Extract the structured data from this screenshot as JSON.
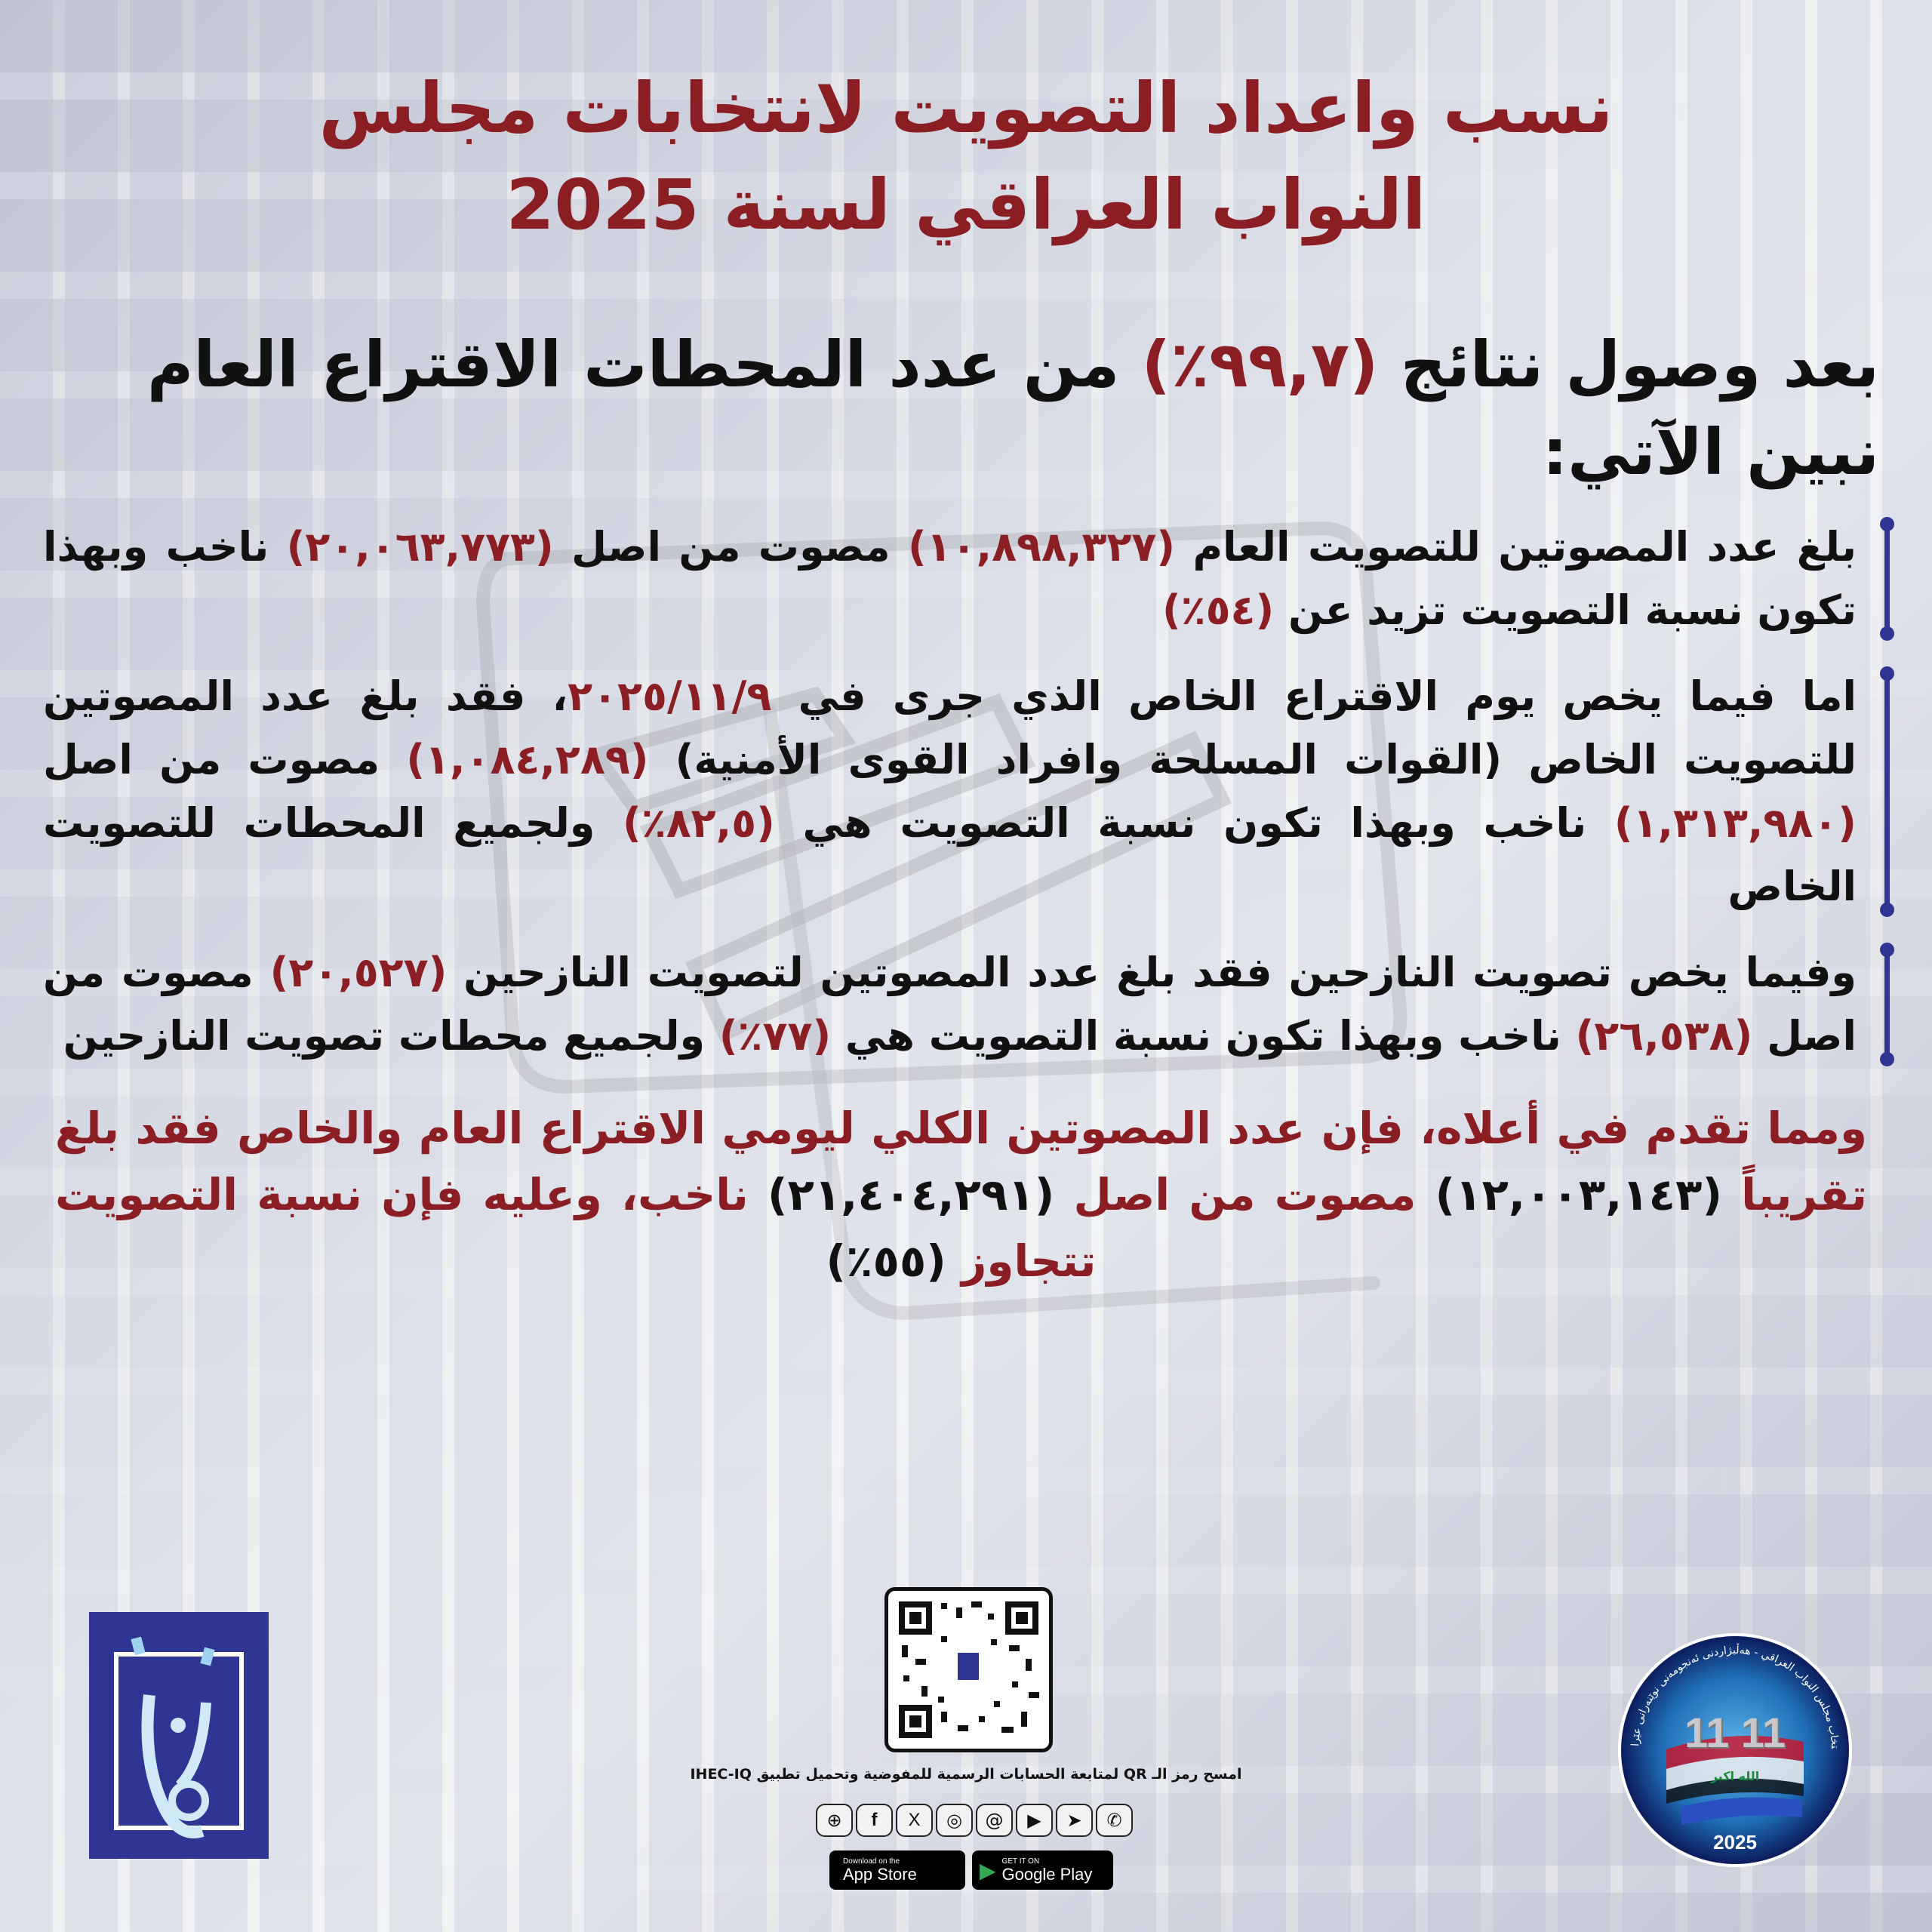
{
  "title": {
    "line1": "نسب واعداد التصويت لانتخابات مجلس",
    "line2": "النواب العراقي لسنة 2025"
  },
  "heading": [
    {
      "t": "بعد وصول نتائج "
    },
    {
      "t": "(٩٩,٧٪)",
      "red": true
    },
    {
      "t": " من عدد المحطات الاقتراع العام نبين الآتي:"
    }
  ],
  "paragraphs": [
    [
      {
        "t": "بلغ عدد المصوتين للتصويت العام "
      },
      {
        "t": "(١٠,٨٩٨,٣٢٧)",
        "red": true
      },
      {
        "t": " مصوت من اصل "
      },
      {
        "t": "(٢٠,٠٦٣,٧٧٣)",
        "red": true
      },
      {
        "t": " ناخب وبهذا تكون نسبة التصويت تزيد عن "
      },
      {
        "t": "(٥٤٪)",
        "red": true
      }
    ],
    [
      {
        "t": "اما فيما يخص يوم الاقتراع الخاص الذي جرى في "
      },
      {
        "t": "٢٠٢٥/١١/٩",
        "red": true
      },
      {
        "t": "، فقد بلغ عدد المصوتين للتصويت الخاص (القوات المسلحة وافراد القوى الأمنية) "
      },
      {
        "t": "(١,٠٨٤,٢٨٩)",
        "red": true
      },
      {
        "t": " مصوت من اصل "
      },
      {
        "t": "(١,٣١٣,٩٨٠)",
        "red": true
      },
      {
        "t": " ناخب وبهذا تكون نسبة التصويت هي "
      },
      {
        "t": "(٨٢,٥٪)",
        "red": true
      },
      {
        "t": " ولجميع المحطات للتصويت الخاص"
      }
    ],
    [
      {
        "t": "وفيما يخص تصويت النازحين فقد بلغ عدد المصوتين لتصويت النازحين "
      },
      {
        "t": "(٢٠,٥٢٧)",
        "red": true
      },
      {
        "t": " مصوت من اصل "
      },
      {
        "t": "(٢٦,٥٣٨)",
        "red": true
      },
      {
        "t": " ناخب وبهذا تكون نسبة التصويت هي "
      },
      {
        "t": "(٧٧٪)",
        "red": true
      },
      {
        "t": " ولجميع محطات تصويت النازحين"
      }
    ]
  ],
  "conclusion": [
    {
      "t": "ومما تقدم في أعلاه، فإن عدد المصوتين الكلي ليومي الاقتراع العام والخاص فقد بلغ تقريباً "
    },
    {
      "t": "(١٢,٠٠٣,١٤٣)",
      "dark": true
    },
    {
      "t": " مصوت من اصل "
    },
    {
      "t": "(٢١,٤٠٤,٢٩١)",
      "dark": true
    },
    {
      "t": " ناخب، وعليه فإن نسبة التصويت تتجاوز "
    },
    {
      "t": "(٥٥٪)",
      "dark": true
    }
  ],
  "footer": {
    "qr_caption": "امسح رمز الـ QR لمتابعة الحسابات الرسمية للمفوضية وتحميل تطبيق IHEC-IQ",
    "socials": [
      "globe-icon",
      "facebook-icon",
      "x-icon",
      "instagram-icon",
      "threads-icon",
      "youtube-icon",
      "telegram-icon",
      "phone-icon"
    ],
    "app_store": {
      "small": "Download on the",
      "big": "App Store"
    },
    "google_play": {
      "small": "GET IT ON",
      "big": "Google Play"
    },
    "seal": {
      "arc_text": "انتخاب مجلس النواب العراقي - هەڵبژاردنی ئەنجومەنی نوێنەرانی عێراق",
      "number": "11 11",
      "flag_text": "الله اكبر",
      "year": "2025"
    }
  },
  "colors": {
    "accent_red": "#8b1e22",
    "brand_blue": "#2e3592",
    "text": "#111111"
  }
}
